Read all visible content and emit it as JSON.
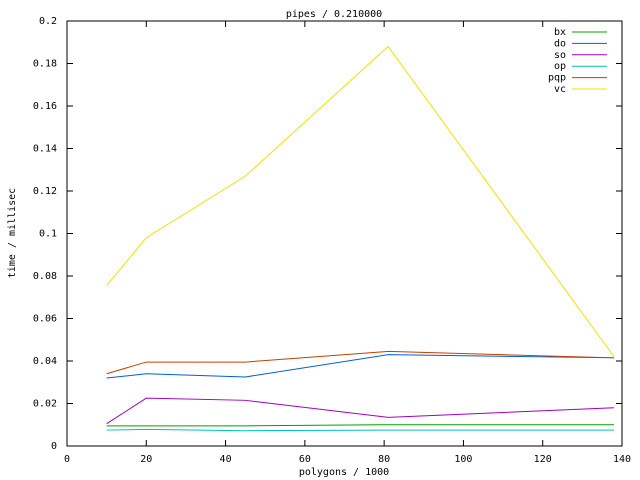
{
  "chart_data": {
    "type": "line",
    "title": "pipes / 0.210000",
    "x_label": "polygons / 1000",
    "y_label": "time / millisec",
    "x": [
      10,
      20,
      45,
      81,
      138
    ],
    "series": [
      {
        "name": "bx",
        "color": "#00a000",
        "values": [
          0.0095,
          0.0095,
          0.0095,
          0.01,
          0.01
        ]
      },
      {
        "name": "do",
        "color": "#0060d0",
        "values": [
          0.032,
          0.034,
          0.0325,
          0.043,
          0.0415
        ]
      },
      {
        "name": "so",
        "color": "#a000c0",
        "values": [
          0.0105,
          0.0225,
          0.0215,
          0.0135,
          0.018
        ]
      },
      {
        "name": "op",
        "color": "#00c0c0",
        "values": [
          0.0075,
          0.0078,
          0.0072,
          0.0075,
          0.0075
        ]
      },
      {
        "name": "pqp",
        "color": "#c04000",
        "values": [
          0.034,
          0.0395,
          0.0395,
          0.0445,
          0.0415
        ]
      },
      {
        "name": "vc",
        "color": "#f0e000",
        "values": [
          0.0755,
          0.098,
          0.127,
          0.188,
          0.042
        ]
      }
    ],
    "xlim": [
      0,
      140
    ],
    "xticks": [
      0,
      20,
      40,
      60,
      80,
      100,
      120,
      140
    ],
    "ylim": [
      0,
      0.2
    ],
    "yticks": [
      0,
      0.02,
      0.04,
      0.06,
      0.08,
      0.1,
      0.12,
      0.14,
      0.16,
      0.18,
      0.2
    ],
    "legend": "top-right"
  }
}
